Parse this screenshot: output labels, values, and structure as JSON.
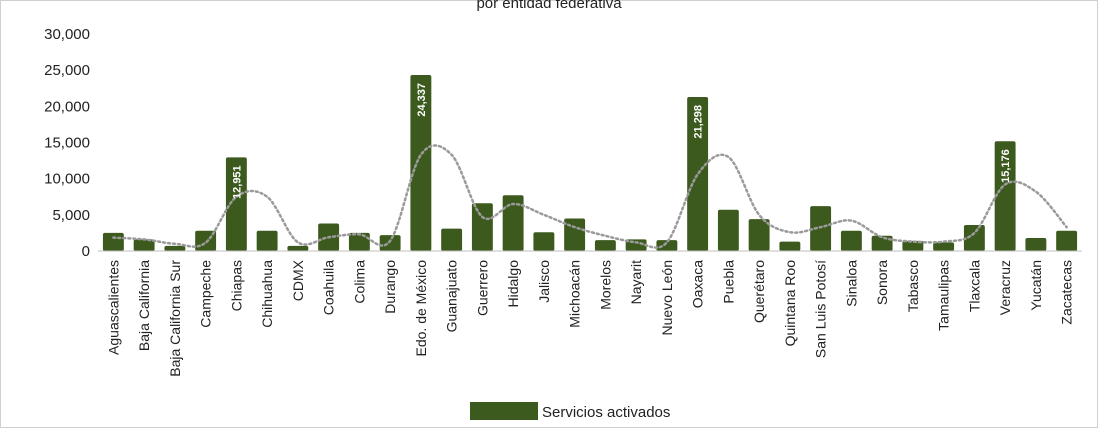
{
  "chart_data": {
    "type": "bar",
    "title_fragment": "por entidad federativa",
    "categories": [
      "Aguascalientes",
      "Baja California",
      "Baja California Sur",
      "Campeche",
      "Chiapas",
      "Chihuahua",
      "CDMX",
      "Coahuila",
      "Colima",
      "Durango",
      "Edo. de México",
      "Guanajuato",
      "Guerrero",
      "Hidalgo",
      "Jalisco",
      "Michoacán",
      "Morelos",
      "Nayarit",
      "Nuevo León",
      "Oaxaca",
      "Puebla",
      "Querétaro",
      "Quintana Roo",
      "San Luis Potosí",
      "Sinaloa",
      "Sonora",
      "Tabasco",
      "Tamaulipas",
      "Tlaxcala",
      "Veracruz",
      "Yucatán",
      "Zacatecas"
    ],
    "series": [
      {
        "name": "Servicios activados",
        "color": "#3d5a1e",
        "values": [
          2500,
          1600,
          700,
          2800,
          12951,
          2800,
          700,
          3800,
          2500,
          2200,
          24337,
          3100,
          6600,
          7700,
          2600,
          4500,
          1500,
          1600,
          1500,
          21298,
          5700,
          4400,
          1300,
          6200,
          2800,
          2100,
          1400,
          1200,
          3600,
          15176,
          1800,
          2800
        ]
      }
    ],
    "data_labels": [
      {
        "category": "Chiapas",
        "text": "12,951"
      },
      {
        "category": "Edo. de México",
        "text": "24,337"
      },
      {
        "category": "Oaxaca",
        "text": "21,298"
      },
      {
        "category": "Veracruz",
        "text": "15,176"
      }
    ],
    "trendline": {
      "style": "dotted",
      "color": "#9a9a9a",
      "values": [
        1850,
        1600,
        1000,
        1150,
        7500,
        7500,
        1200,
        1900,
        2300,
        1400,
        13300,
        13300,
        4700,
        6500,
        5000,
        3300,
        2100,
        1200,
        1200,
        10600,
        13000,
        5000,
        2600,
        3300,
        4200,
        1900,
        1300,
        1300,
        2500,
        9200,
        8200,
        3300
      ]
    },
    "ylim": [
      0,
      30000
    ],
    "yticks": [
      "0",
      "5,000",
      "10,000",
      "15,000",
      "20,000",
      "25,000",
      "30,000"
    ],
    "ytick_values": [
      0,
      5000,
      10000,
      15000,
      20000,
      25000,
      30000
    ],
    "grid": false,
    "legend": {
      "position": "bottom",
      "entries": [
        "Servicios activados"
      ]
    }
  }
}
